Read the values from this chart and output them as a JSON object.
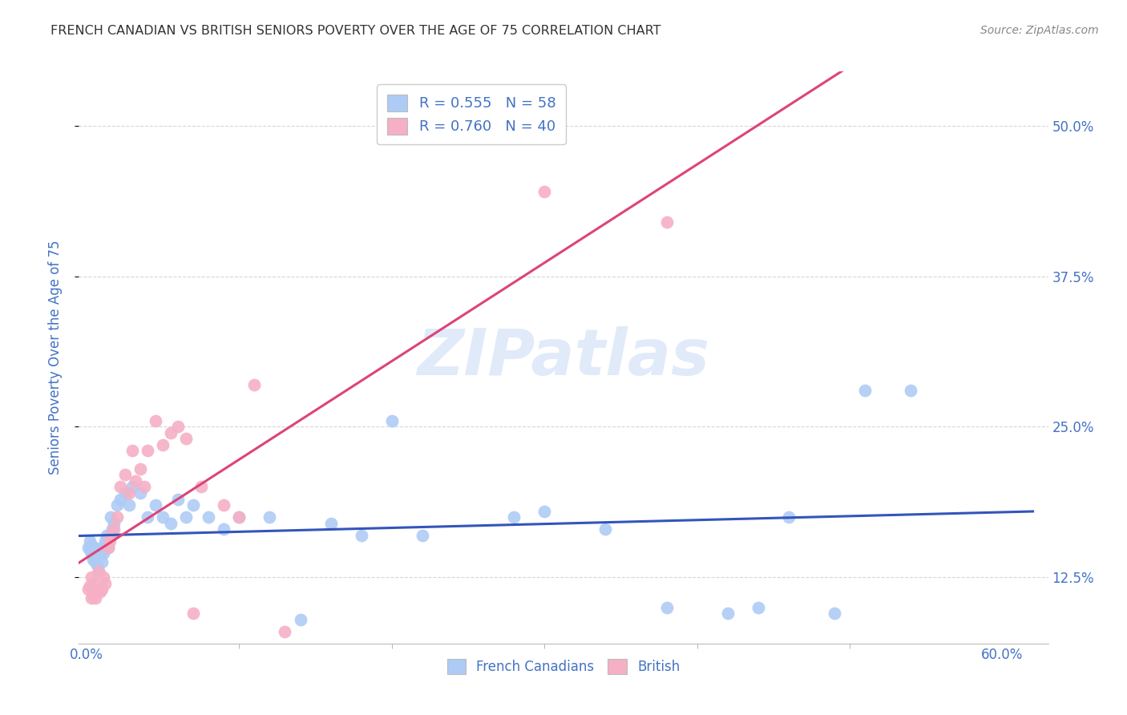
{
  "title": "FRENCH CANADIAN VS BRITISH SENIORS POVERTY OVER THE AGE OF 75 CORRELATION CHART",
  "source": "Source: ZipAtlas.com",
  "ylabel": "Seniors Poverty Over the Age of 75",
  "xlim": [
    -0.005,
    0.63
  ],
  "ylim": [
    0.07,
    0.545
  ],
  "ytick_vals": [
    0.125,
    0.25,
    0.375,
    0.5
  ],
  "ytick_labels": [
    "12.5%",
    "25.0%",
    "37.5%",
    "50.0%"
  ],
  "xtick_vals": [
    0.0,
    0.6
  ],
  "xtick_labels": [
    "0.0%",
    "60.0%"
  ],
  "xtick_minor_vals": [
    0.1,
    0.2,
    0.3,
    0.4,
    0.5
  ],
  "legend1_label": "R = 0.555   N = 58",
  "legend2_label": "R = 0.760   N = 40",
  "legend_fc1": "#aecbf5",
  "legend_fc2": "#f5b0c5",
  "blue_dot_color": "#aecbf5",
  "pink_dot_color": "#f5b0c5",
  "blue_line_color": "#3355bb",
  "pink_line_color": "#dd4477",
  "label_color": "#4472C4",
  "watermark": "ZIPatlas",
  "watermark_color": "#ccddf5",
  "background_color": "#ffffff",
  "grid_color": "#cccccc",
  "title_color": "#333333",
  "fc_x": [
    0.001,
    0.002,
    0.002,
    0.003,
    0.003,
    0.004,
    0.004,
    0.005,
    0.005,
    0.006,
    0.006,
    0.007,
    0.007,
    0.008,
    0.008,
    0.009,
    0.01,
    0.01,
    0.011,
    0.012,
    0.013,
    0.014,
    0.015,
    0.016,
    0.017,
    0.018,
    0.02,
    0.022,
    0.025,
    0.028,
    0.03,
    0.035,
    0.04,
    0.045,
    0.05,
    0.055,
    0.06,
    0.065,
    0.07,
    0.08,
    0.09,
    0.1,
    0.12,
    0.14,
    0.16,
    0.18,
    0.2,
    0.22,
    0.28,
    0.3,
    0.34,
    0.38,
    0.42,
    0.44,
    0.46,
    0.49,
    0.51,
    0.54
  ],
  "fc_y": [
    0.15,
    0.148,
    0.155,
    0.145,
    0.152,
    0.14,
    0.147,
    0.143,
    0.15,
    0.138,
    0.145,
    0.135,
    0.142,
    0.148,
    0.13,
    0.145,
    0.138,
    0.15,
    0.145,
    0.155,
    0.16,
    0.15,
    0.16,
    0.175,
    0.165,
    0.17,
    0.185,
    0.19,
    0.195,
    0.185,
    0.2,
    0.195,
    0.175,
    0.185,
    0.175,
    0.17,
    0.19,
    0.175,
    0.185,
    0.175,
    0.165,
    0.175,
    0.175,
    0.09,
    0.17,
    0.16,
    0.255,
    0.16,
    0.175,
    0.18,
    0.165,
    0.1,
    0.095,
    0.1,
    0.175,
    0.095,
    0.28,
    0.28
  ],
  "br_x": [
    0.001,
    0.002,
    0.003,
    0.003,
    0.004,
    0.005,
    0.005,
    0.006,
    0.007,
    0.008,
    0.009,
    0.01,
    0.011,
    0.012,
    0.014,
    0.015,
    0.016,
    0.018,
    0.02,
    0.022,
    0.025,
    0.028,
    0.03,
    0.032,
    0.035,
    0.038,
    0.04,
    0.045,
    0.05,
    0.055,
    0.06,
    0.065,
    0.07,
    0.075,
    0.09,
    0.1,
    0.11,
    0.13,
    0.3,
    0.38
  ],
  "br_y": [
    0.115,
    0.118,
    0.108,
    0.125,
    0.11,
    0.115,
    0.12,
    0.108,
    0.115,
    0.13,
    0.113,
    0.115,
    0.125,
    0.12,
    0.15,
    0.155,
    0.16,
    0.165,
    0.175,
    0.2,
    0.21,
    0.195,
    0.23,
    0.205,
    0.215,
    0.2,
    0.23,
    0.255,
    0.235,
    0.245,
    0.25,
    0.24,
    0.095,
    0.2,
    0.185,
    0.175,
    0.285,
    0.08,
    0.445,
    0.42
  ]
}
